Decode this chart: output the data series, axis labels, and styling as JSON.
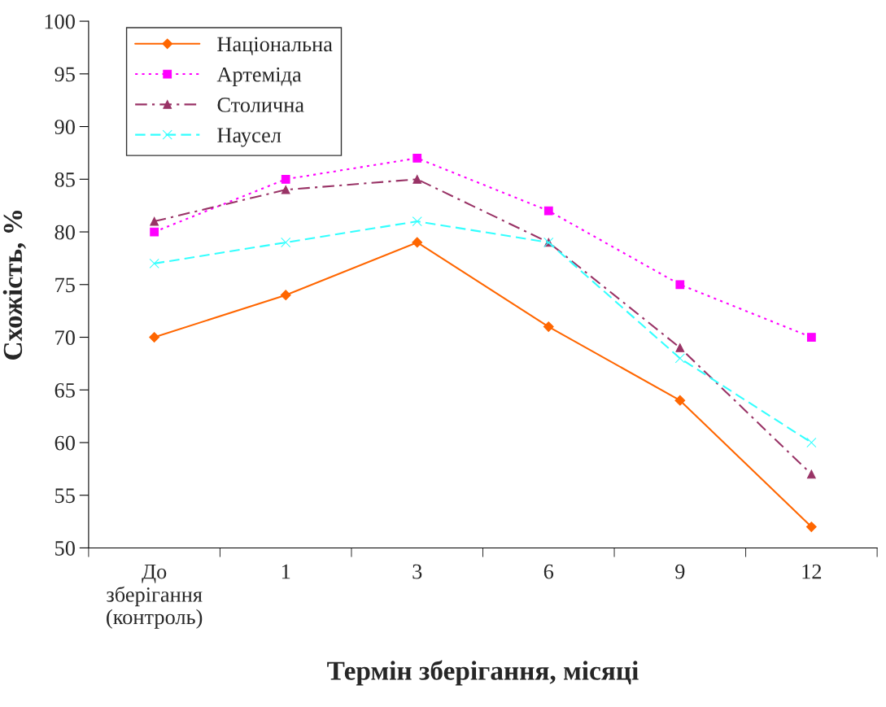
{
  "chart_data": {
    "type": "line",
    "xlabel": "Термін зберігання, місяці",
    "ylabel": "Схожість, %",
    "categories": [
      "До\nзберігання\n(контроль)",
      "1",
      "3",
      "6",
      "9",
      "12"
    ],
    "series": [
      {
        "name": "Національна",
        "color": "#ff6600",
        "marker": "diamond",
        "line_style": "solid",
        "values": [
          70,
          74,
          79,
          71,
          64,
          52
        ]
      },
      {
        "name": "Артеміда",
        "color": "#ff00ff",
        "marker": "square",
        "line_style": "dotted",
        "values": [
          80,
          85,
          87,
          82,
          75,
          70
        ]
      },
      {
        "name": "Столична",
        "color": "#993366",
        "marker": "triangle",
        "line_style": "dashdot",
        "values": [
          81,
          84,
          85,
          79,
          69,
          57
        ]
      },
      {
        "name": "Наусел",
        "color": "#33ffff",
        "marker": "cross",
        "line_style": "dashed",
        "values": [
          77,
          79,
          81,
          79,
          68,
          60
        ]
      }
    ],
    "ylim": [
      50,
      100
    ],
    "yticks": [
      50,
      55,
      60,
      65,
      70,
      75,
      80,
      85,
      90,
      95,
      100
    ],
    "grid": false,
    "legend": "top left"
  }
}
